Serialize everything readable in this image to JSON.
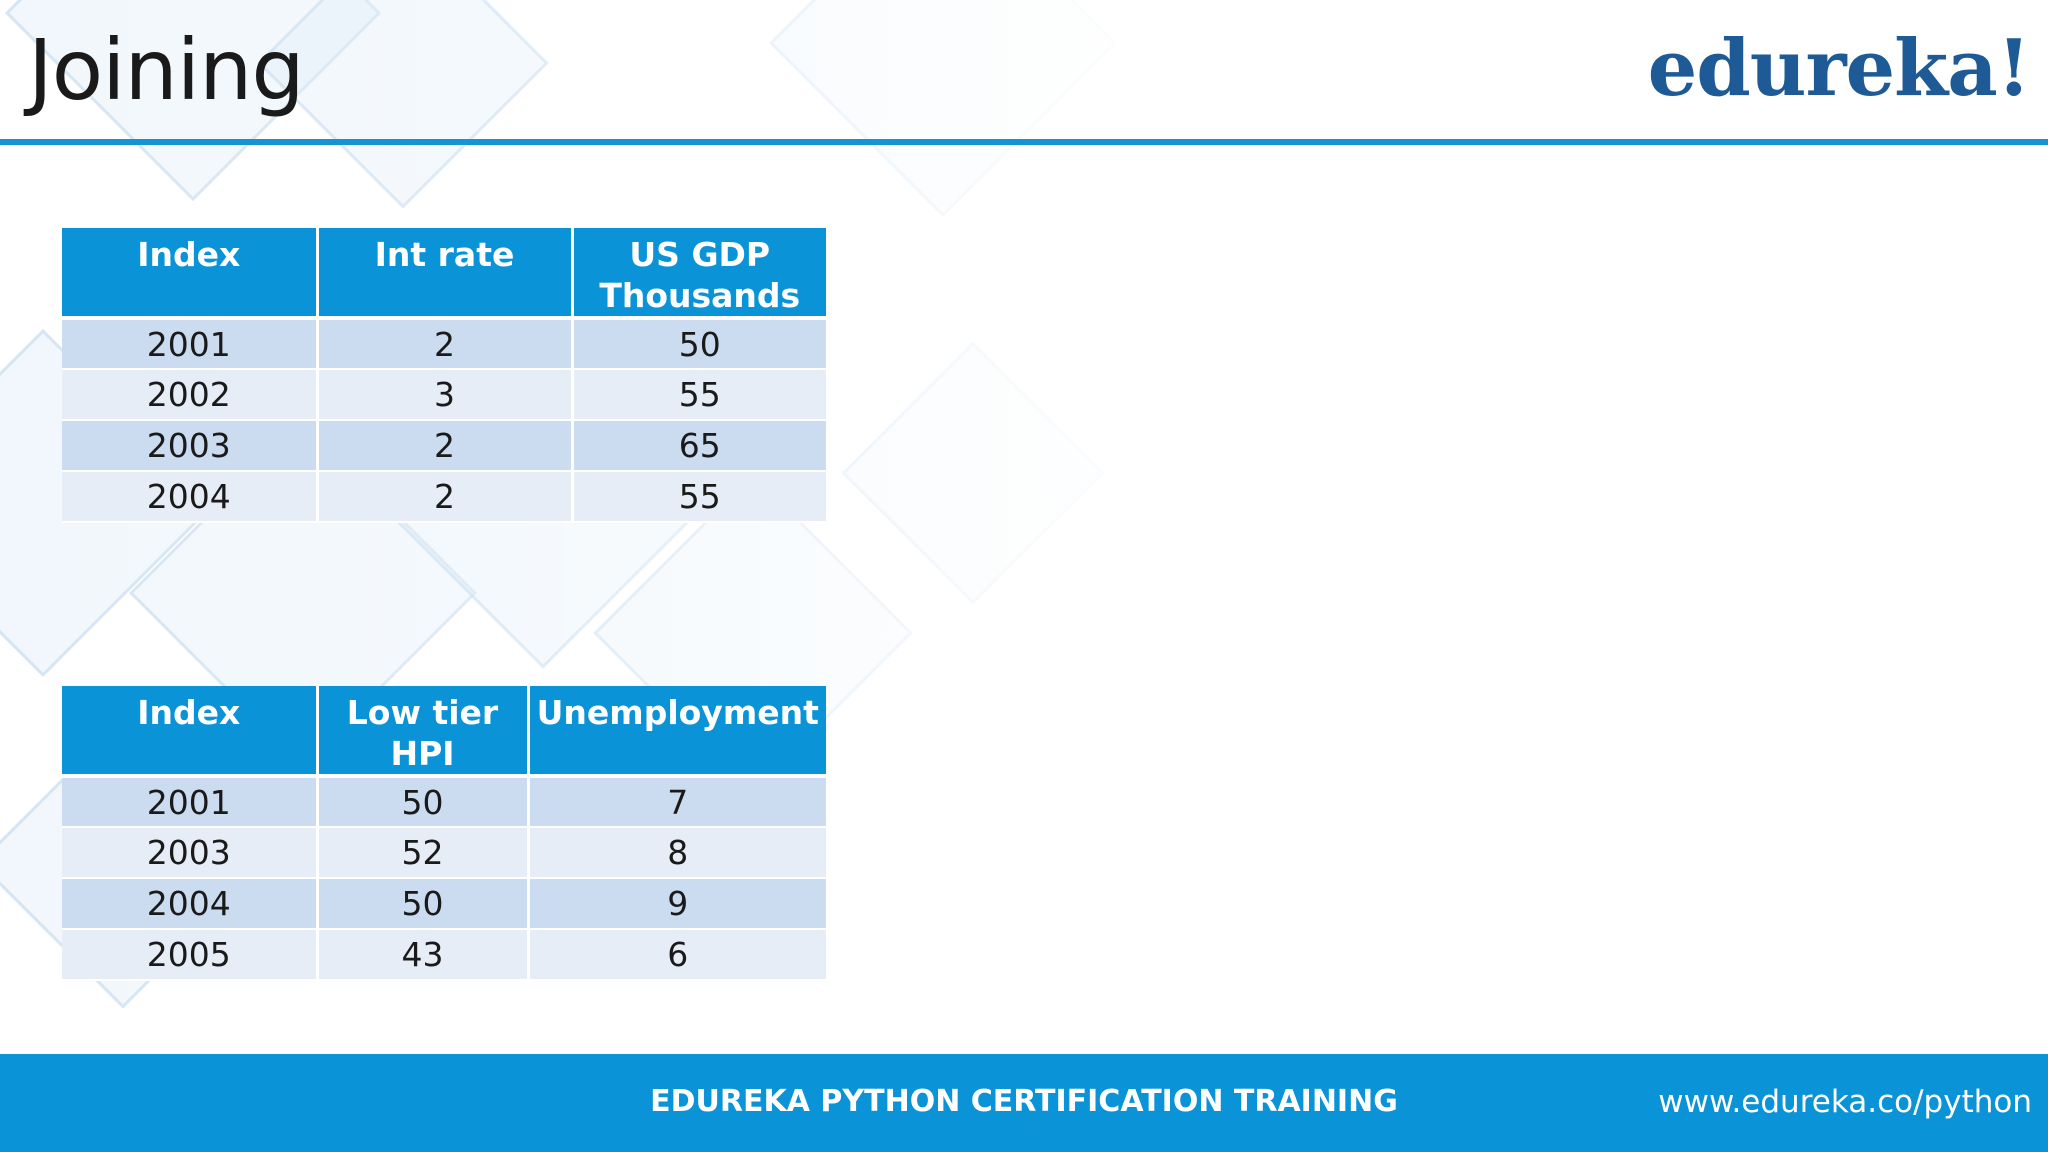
{
  "header": {
    "title": "Joining",
    "logo_text": "edureka!"
  },
  "table_1": {
    "columns": [
      "Index",
      "Int rate",
      "US GDP Thousands"
    ],
    "rows": [
      [
        "2001",
        "2",
        "50"
      ],
      [
        "2002",
        "3",
        "55"
      ],
      [
        "2003",
        "2",
        "65"
      ],
      [
        "2004",
        "2",
        "55"
      ]
    ]
  },
  "table_2": {
    "columns": [
      "Index",
      "Low tier HPI",
      "Unemployment"
    ],
    "rows": [
      [
        "2001",
        "50",
        "7"
      ],
      [
        "2003",
        "52",
        "8"
      ],
      [
        "2004",
        "50",
        "9"
      ],
      [
        "2005",
        "43",
        "6"
      ]
    ]
  },
  "footer": {
    "title": "EDUREKA PYTHON CERTIFICATION TRAINING",
    "url": "www.edureka.co/python"
  },
  "colors": {
    "accent": "#0a93d6",
    "logo": "#1d5a96",
    "row_dark": "#ccdcf0",
    "row_light": "#e7edf6"
  }
}
